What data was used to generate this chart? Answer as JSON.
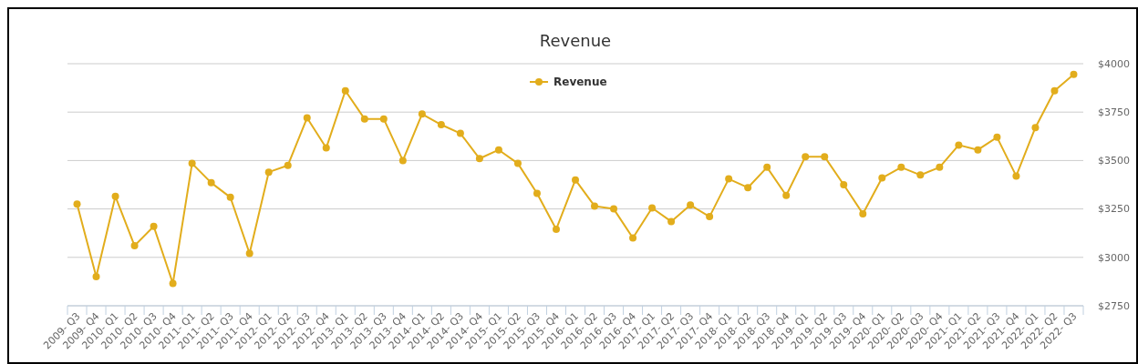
{
  "chart_data": {
    "type": "line",
    "title": "Revenue",
    "categories": [
      "2009- Q3",
      "2009- Q4",
      "2010- Q1",
      "2010- Q2",
      "2010- Q3",
      "2010- Q4",
      "2011- Q1",
      "2011- Q2",
      "2011- Q3",
      "2011- Q4",
      "2012- Q1",
      "2012- Q2",
      "2012- Q3",
      "2012- Q4",
      "2013- Q1",
      "2013- Q2",
      "2013- Q3",
      "2013- Q4",
      "2014- Q1",
      "2014- Q2",
      "2014- Q3",
      "2014- Q4",
      "2015- Q1",
      "2015- Q2",
      "2015- Q3",
      "2015- Q4",
      "2016- Q1",
      "2016- Q2",
      "2016- Q3",
      "2016- Q4",
      "2017- Q1",
      "2017- Q2",
      "2017- Q3",
      "2017- Q4",
      "2018- Q1",
      "2018- Q2",
      "2018- Q3",
      "2018- Q4",
      "2019- Q1",
      "2019- Q2",
      "2019- Q3",
      "2019- Q4",
      "2020- Q1",
      "2020- Q2",
      "2020- Q3",
      "2020- Q4",
      "2021- Q1",
      "2021- Q2",
      "2021- Q3",
      "2021- Q4",
      "2022- Q1",
      "2022- Q2",
      "2022- Q3"
    ],
    "series": [
      {
        "name": "Revenue",
        "color": "#e2ad1c",
        "values": [
          3275,
          2900,
          3315,
          3060,
          3160,
          2865,
          3485,
          3385,
          3310,
          3020,
          3440,
          3475,
          3720,
          3565,
          3860,
          3715,
          3715,
          3500,
          3740,
          3685,
          3640,
          3510,
          3555,
          3485,
          3330,
          3145,
          3400,
          3265,
          3250,
          3100,
          3255,
          3185,
          3270,
          3210,
          3405,
          3360,
          3465,
          3320,
          3520,
          3520,
          3375,
          3225,
          3410,
          3465,
          3425,
          3465,
          3580,
          3555,
          3620,
          3420,
          3670,
          3860,
          3945
        ]
      }
    ],
    "ylim": [
      2750,
      4000
    ],
    "yticks": [
      {
        "value": 2750,
        "label": "$2750"
      },
      {
        "value": 3000,
        "label": "$3000"
      },
      {
        "value": 3250,
        "label": "$3250"
      },
      {
        "value": 3500,
        "label": "$3500"
      },
      {
        "value": 3750,
        "label": "$3750"
      },
      {
        "value": 4000,
        "label": "$4000"
      }
    ],
    "grid": "y",
    "legend": "top",
    "marker": "circle",
    "line_style": "solid"
  }
}
